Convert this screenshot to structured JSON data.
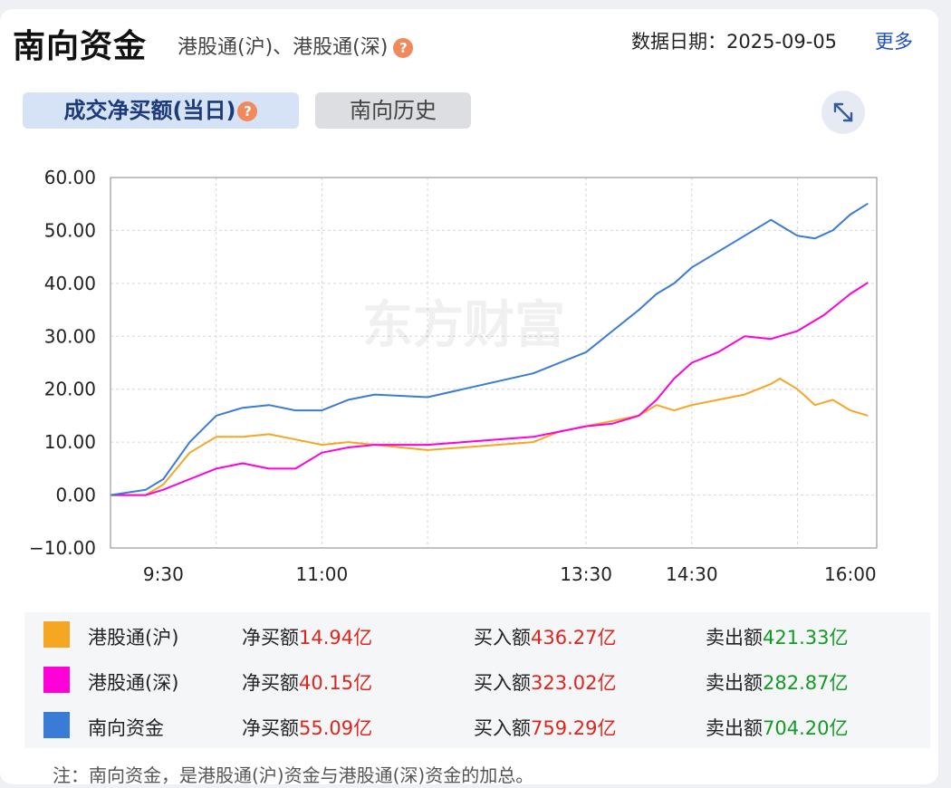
{
  "header": {
    "title": "南向资金",
    "subtitle": "港股通(沪)、港股通(深)",
    "help_glyph": "?",
    "date_label": "数据日期：2025-09-05",
    "more_label": "更多"
  },
  "tabs": [
    {
      "label": "成交净买额(当日)",
      "active": true
    },
    {
      "label": "南向历史",
      "active": false
    }
  ],
  "watermark": "东方财富",
  "colors": {
    "hu": "#f5a623",
    "shen": "#ff00d8",
    "south": "#3a7bd5",
    "positive": "#e0241b",
    "negative": "#139a23"
  },
  "chart_data": {
    "type": "line",
    "title": "",
    "xlabel": "",
    "ylabel": "",
    "ylim": [
      -10,
      60
    ],
    "yticks": [
      "60.00",
      "50.00",
      "40.00",
      "30.00",
      "20.00",
      "10.00",
      "0.00",
      "−10.00"
    ],
    "xticks": [
      "9:30",
      "11:00",
      "13:30",
      "14:30",
      "16:00"
    ],
    "grid": true,
    "series": [
      {
        "name": "港股通(沪)",
        "color": "#f5a623",
        "x": [
          "9:00",
          "9:20",
          "9:30",
          "9:45",
          "10:00",
          "10:15",
          "10:30",
          "10:45",
          "11:00",
          "11:15",
          "11:30",
          "12:00",
          "13:00",
          "13:15",
          "13:30",
          "13:45",
          "14:00",
          "14:10",
          "14:20",
          "14:30",
          "14:45",
          "15:00",
          "15:15",
          "15:20",
          "15:30",
          "15:40",
          "15:50",
          "16:00",
          "16:10"
        ],
        "y": [
          0,
          0,
          2,
          8,
          11,
          11,
          11.5,
          10.5,
          9.5,
          10,
          9.5,
          8.5,
          10,
          12,
          13,
          14,
          15,
          17,
          16,
          17,
          18,
          19,
          21,
          22,
          20,
          17,
          18,
          16,
          15
        ]
      },
      {
        "name": "港股通(深)",
        "color": "#ff00d8",
        "x": [
          "9:00",
          "9:20",
          "9:30",
          "9:45",
          "10:00",
          "10:15",
          "10:30",
          "10:45",
          "11:00",
          "11:15",
          "11:30",
          "12:00",
          "13:00",
          "13:15",
          "13:30",
          "13:45",
          "14:00",
          "14:10",
          "14:20",
          "14:30",
          "14:45",
          "15:00",
          "15:15",
          "15:30",
          "15:45",
          "16:00",
          "16:10"
        ],
        "y": [
          0,
          0,
          1,
          3,
          5,
          6,
          5,
          5,
          8,
          9,
          9.5,
          9.5,
          11,
          12,
          13,
          13.5,
          15,
          18,
          22,
          25,
          27,
          30,
          29.5,
          31,
          34,
          38,
          40.15
        ]
      },
      {
        "name": "南向资金",
        "color": "#3a7bd5",
        "x": [
          "9:00",
          "9:20",
          "9:30",
          "9:45",
          "10:00",
          "10:15",
          "10:30",
          "10:45",
          "11:00",
          "11:15",
          "11:30",
          "12:00",
          "13:00",
          "13:15",
          "13:30",
          "13:45",
          "14:00",
          "14:10",
          "14:20",
          "14:30",
          "14:45",
          "15:00",
          "15:15",
          "15:20",
          "15:30",
          "15:40",
          "15:50",
          "16:00",
          "16:10"
        ],
        "y": [
          0,
          1,
          3,
          10,
          15,
          16.5,
          17,
          16,
          16,
          18,
          19,
          18.5,
          23,
          25,
          27,
          31,
          35,
          38,
          40,
          43,
          46,
          49,
          52,
          51,
          49,
          48.5,
          50,
          53,
          55.09
        ]
      }
    ]
  },
  "legend": [
    {
      "name": "港股通(沪)",
      "color": "#f5a623",
      "net_label": "净买额",
      "net_value": "14.94亿",
      "buy_label": "买入额",
      "buy_value": "436.27亿",
      "sell_label": "卖出额",
      "sell_value": "421.33亿"
    },
    {
      "name": "港股通(深)",
      "color": "#ff00d8",
      "net_label": "净买额",
      "net_value": "40.15亿",
      "buy_label": "买入额",
      "buy_value": "323.02亿",
      "sell_label": "卖出额",
      "sell_value": "282.87亿"
    },
    {
      "name": "南向资金",
      "color": "#3a7bd5",
      "net_label": "净买额",
      "net_value": "55.09亿",
      "buy_label": "买入额",
      "buy_value": "759.29亿",
      "sell_label": "卖出额",
      "sell_value": "704.20亿"
    }
  ],
  "note": "注：南向资金，是港股通(沪)资金与港股通(深)资金的加总。"
}
